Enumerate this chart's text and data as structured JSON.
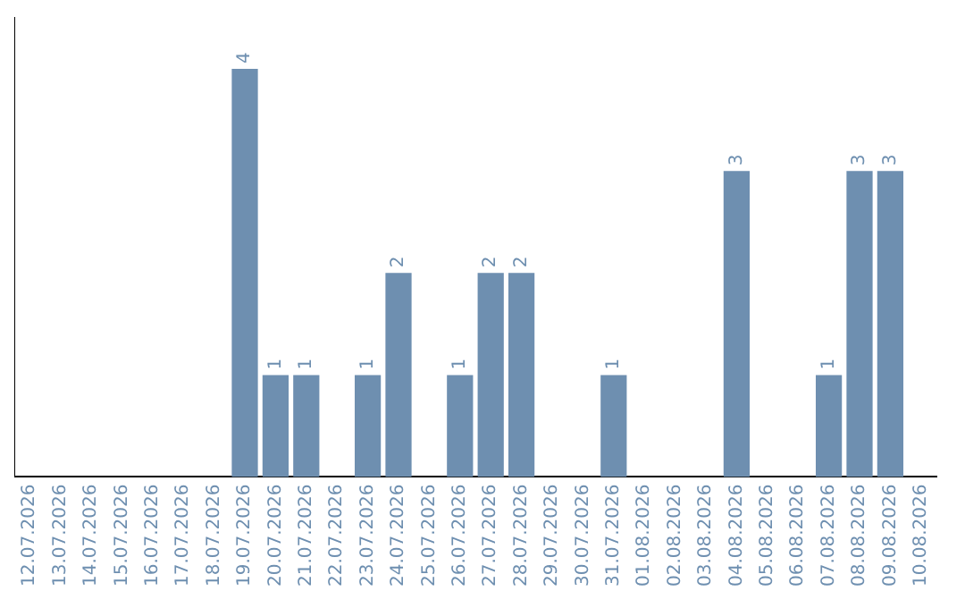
{
  "chart_data": {
    "type": "bar",
    "categories": [
      "12.07.2026",
      "13.07.2026",
      "14.07.2026",
      "15.07.2026",
      "16.07.2026",
      "17.07.2026",
      "18.07.2026",
      "19.07.2026",
      "20.07.2026",
      "21.07.2026",
      "22.07.2026",
      "23.07.2026",
      "24.07.2026",
      "25.07.2026",
      "26.07.2026",
      "27.07.2026",
      "28.07.2026",
      "29.07.2026",
      "30.07.2026",
      "31.07.2026",
      "01.08.2026",
      "02.08.2026",
      "03.08.2026",
      "04.08.2026",
      "05.08.2026",
      "06.08.2026",
      "07.08.2026",
      "08.08.2026",
      "09.08.2026",
      "10.08.2026"
    ],
    "values": [
      0,
      0,
      0,
      0,
      0,
      0,
      0,
      4,
      1,
      1,
      0,
      1,
      2,
      0,
      1,
      2,
      2,
      0,
      0,
      1,
      0,
      0,
      0,
      3,
      0,
      0,
      1,
      3,
      3,
      0
    ],
    "value_labels": [
      null,
      null,
      null,
      null,
      null,
      null,
      null,
      "4",
      "1",
      "1",
      null,
      "1",
      "2",
      null,
      "1",
      "2",
      "2",
      null,
      null,
      "1",
      null,
      null,
      null,
      "3",
      null,
      null,
      "1",
      "3",
      "3",
      null
    ],
    "color": "#6e8fb0",
    "grid": false,
    "legend": false,
    "tick_labels": "x"
  }
}
